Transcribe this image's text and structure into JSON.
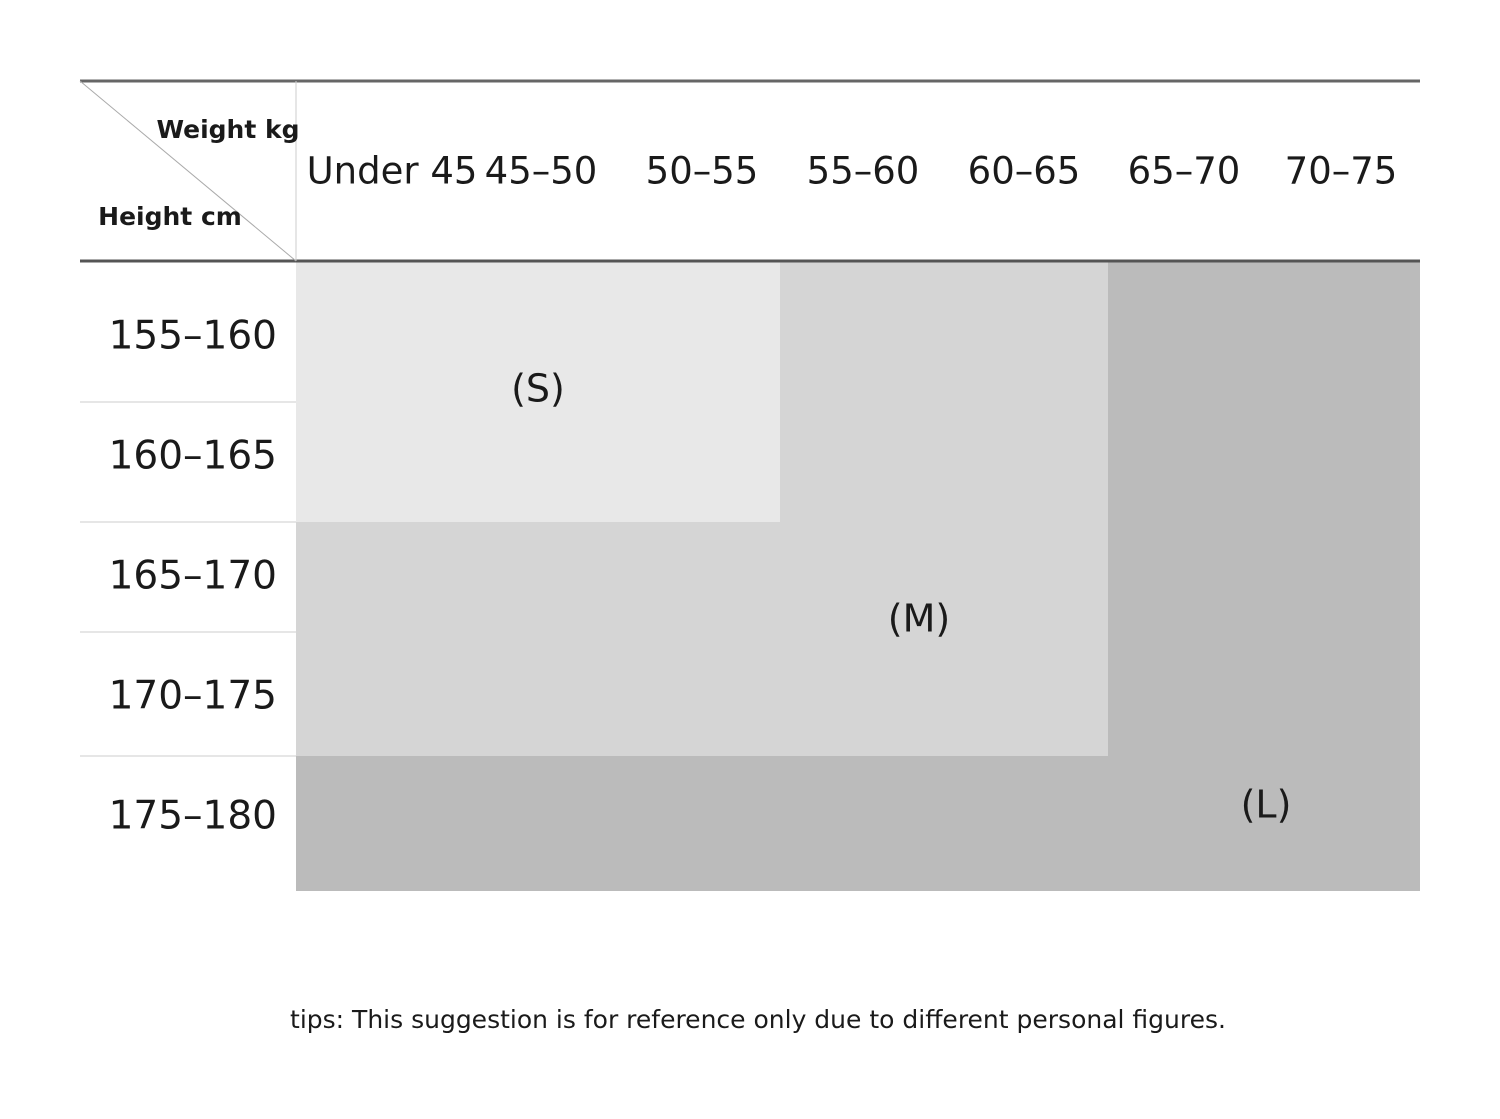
{
  "table": {
    "corner": {
      "top": "Weight kg",
      "bottom": "Height cm"
    },
    "columns": [
      "Under 45",
      "45–50",
      "50–55",
      "55–60",
      "60–65",
      "65–70",
      "70–75"
    ],
    "rows": [
      "155–160",
      "160–165",
      "165–170",
      "170–175",
      "175–180"
    ],
    "sizes": [
      "(S)",
      "(M)",
      "(L)"
    ]
  },
  "footer": {
    "tip": "tips: This suggestion is for reference only due to different personal figures."
  }
}
